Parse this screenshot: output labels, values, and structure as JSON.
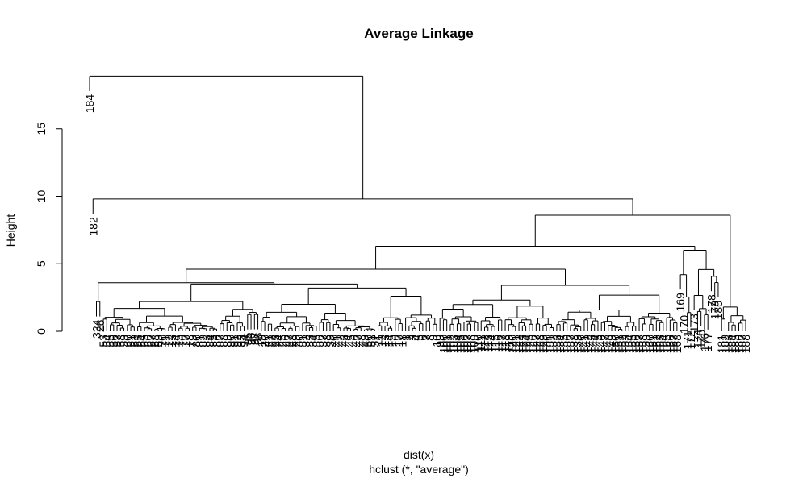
{
  "chart_data": {
    "type": "dendrogram",
    "title": "Average Linkage",
    "xlabel": "dist(x)",
    "ylabel": "Height",
    "subtitle": "hclust (*, \"average\")",
    "ylim": [
      0,
      19
    ],
    "yticks": [
      0,
      5,
      10,
      15
    ],
    "grid": false,
    "legend": "none",
    "merges": [
      {
        "height": 18.9,
        "children": [
          "184",
          "main"
        ]
      },
      {
        "height": 9.8,
        "children": [
          "182",
          "body"
        ]
      },
      {
        "height": 8.6,
        "children": [
          "left-group",
          "right-group"
        ]
      },
      {
        "height": 6.3,
        "children": [
          "cluster-A",
          "right-tail"
        ]
      },
      {
        "height": 4.6,
        "children": [
          "cluster-B",
          "cluster-C"
        ]
      },
      {
        "height": 3.6,
        "children": [
          "324",
          "cluster-D"
        ]
      },
      {
        "height": 3.5,
        "children": [
          "cluster-E",
          "cluster-F"
        ]
      },
      {
        "height": 3.2,
        "children": [
          "cluster-G",
          "cluster-H"
        ]
      },
      {
        "height": 2.6,
        "children": [
          "cluster-I",
          "cluster-J"
        ]
      }
    ],
    "leaf_labels_visible": [
      "184",
      "182",
      "324",
      "26"
    ]
  },
  "colors": {
    "line": "#000000",
    "background": "#ffffff"
  }
}
